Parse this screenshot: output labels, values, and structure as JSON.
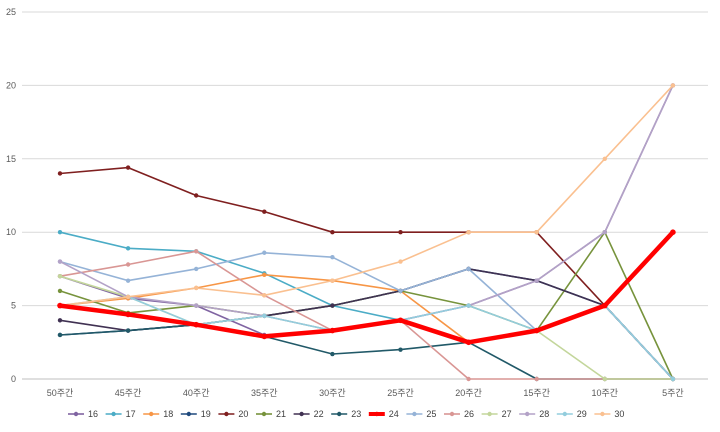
{
  "chart_data": {
    "type": "line",
    "categories": [
      "50주간",
      "45주간",
      "40주간",
      "35주간",
      "30주간",
      "25주간",
      "20주간",
      "15주간",
      "10주간",
      "5주간"
    ],
    "ylim": [
      0,
      25
    ],
    "yticks": [
      0,
      5,
      10,
      15,
      20,
      25
    ],
    "grid": true,
    "legend_position": "bottom",
    "highlight_series": "24",
    "series": [
      {
        "name": "16",
        "color": "#8064a2",
        "values": [
          7,
          5.5,
          5,
          3,
          3.3,
          4,
          5,
          6.7,
          10,
          20
        ]
      },
      {
        "name": "17",
        "color": "#4bacc6",
        "values": [
          10,
          8.9,
          8.7,
          7.2,
          5,
          4,
          2.5,
          3.3,
          5,
          0
        ]
      },
      {
        "name": "18",
        "color": "#f79646",
        "values": [
          5,
          5.5,
          6.2,
          7.1,
          6.7,
          6,
          2.5,
          3.3,
          5,
          10
        ]
      },
      {
        "name": "19",
        "color": "#1f497d",
        "values": [
          3,
          3.3,
          3.7,
          4.3,
          5,
          6,
          7.5,
          6.7,
          5,
          0
        ]
      },
      {
        "name": "20",
        "color": "#7f1f1f",
        "values": [
          14,
          14.4,
          12.5,
          11.4,
          10,
          10,
          10,
          10,
          5,
          0
        ]
      },
      {
        "name": "21",
        "color": "#77933c",
        "values": [
          6,
          4.5,
          5,
          4.3,
          5,
          6,
          5,
          3.3,
          10,
          0
        ]
      },
      {
        "name": "22",
        "color": "#403152",
        "values": [
          4,
          3.3,
          3.7,
          4.3,
          5,
          6,
          7.5,
          6.7,
          5,
          0
        ]
      },
      {
        "name": "23",
        "color": "#215968",
        "values": [
          3,
          3.3,
          3.7,
          2.9,
          1.7,
          2,
          2.5,
          0,
          0,
          0
        ]
      },
      {
        "name": "24",
        "color": "#ff0000",
        "values": [
          5,
          4.4,
          3.7,
          2.9,
          3.3,
          4,
          2.5,
          3.3,
          5,
          10
        ]
      },
      {
        "name": "25",
        "color": "#95b3d7",
        "values": [
          8,
          6.7,
          7.5,
          8.6,
          8.3,
          6,
          7.5,
          3.3,
          5,
          0
        ]
      },
      {
        "name": "26",
        "color": "#d99694",
        "values": [
          7,
          7.8,
          8.7,
          5.7,
          3.3,
          4,
          0,
          0,
          0,
          0
        ]
      },
      {
        "name": "27",
        "color": "#c3d69b",
        "values": [
          7,
          5.6,
          3.7,
          4.3,
          3.3,
          4,
          2.5,
          3.3,
          0,
          0
        ]
      },
      {
        "name": "28",
        "color": "#b3a2c7",
        "values": [
          8,
          5.6,
          5,
          4.3,
          3.3,
          4,
          5,
          6.7,
          10,
          20
        ]
      },
      {
        "name": "29",
        "color": "#93cddd",
        "values": [
          5,
          5.6,
          3.7,
          4.3,
          3.3,
          4,
          5,
          3.3,
          5,
          0
        ]
      },
      {
        "name": "30",
        "color": "#fac090",
        "values": [
          5,
          5.6,
          6.2,
          5.7,
          6.7,
          8,
          10,
          10,
          15,
          20
        ]
      }
    ]
  }
}
